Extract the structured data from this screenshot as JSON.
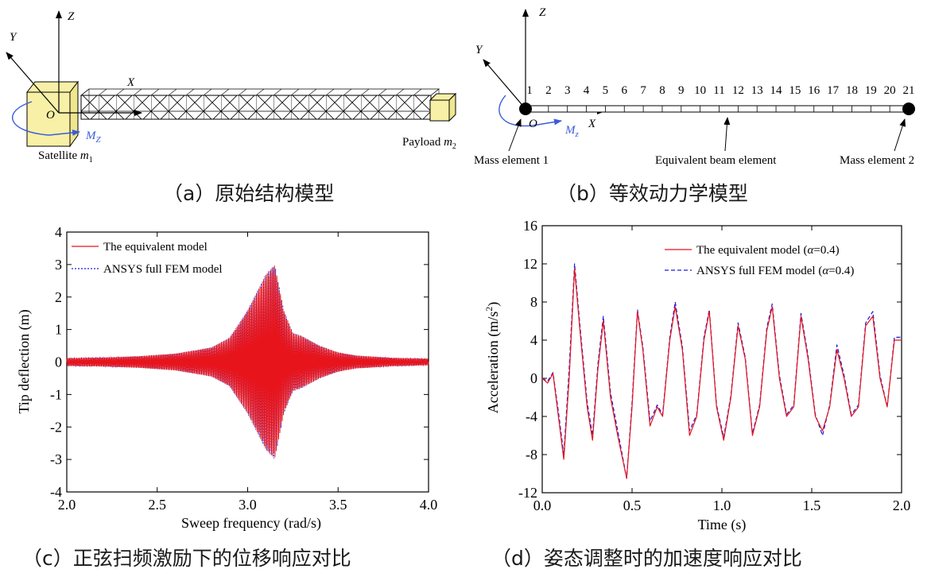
{
  "panel_a": {
    "caption": "（a）原始结构模型",
    "axis_z": "Z",
    "axis_y": "Y",
    "axis_x": "X",
    "origin": "O",
    "moment": "M",
    "moment_sub": "Z",
    "satellite": "Satellite ",
    "satellite_m": "m",
    "satellite_sub": "1",
    "payload": "Payload ",
    "payload_m": "m",
    "payload_sub": "2"
  },
  "panel_b": {
    "caption": "（b）等效动力学模型",
    "axis_z": "Z",
    "axis_y": "Y",
    "axis_x": "X",
    "origin": "O",
    "moment": "M",
    "moment_sub": "z",
    "node_numbers": [
      "1",
      "2",
      "3",
      "4",
      "5",
      "6",
      "7",
      "8",
      "9",
      "10",
      "11",
      "12",
      "13",
      "14",
      "15",
      "16",
      "17",
      "18",
      "19",
      "20",
      "21"
    ],
    "mass_element_1": "Mass element 1",
    "beam_element": "Equivalent beam element",
    "mass_element_2": "Mass element 2"
  },
  "panel_c": {
    "caption": "（c）正弦扫频激励下的位移响应对比"
  },
  "panel_d": {
    "caption": "（d）姿态调整时的加速度响应对比"
  },
  "colors": {
    "equivalent": "#e8141b",
    "ansys": "#1a1adc",
    "moment_arrow": "#3b5bdb",
    "cube": "#f7f0a6"
  },
  "chart_data": [
    {
      "type": "line",
      "xlabel": "Sweep frequency (rad/s)",
      "ylabel": "Tip deflection (m)",
      "xlim": [
        2.0,
        4.0
      ],
      "ylim": [
        -4,
        4
      ],
      "xticks": [
        "2.0",
        "2.5",
        "3.0",
        "3.5",
        "4.0"
      ],
      "yticks": [
        "-4",
        "-3",
        "-2",
        "-1",
        "0",
        "1",
        "2",
        "3",
        "4"
      ],
      "legend_position": "top-left",
      "series": [
        {
          "name": "The equivalent model",
          "style": "solid"
        },
        {
          "name": "ANSYS full FEM model",
          "style": "dotted"
        }
      ],
      "envelope": {
        "x": [
          2.0,
          2.2,
          2.4,
          2.6,
          2.8,
          2.9,
          3.0,
          3.1,
          3.15,
          3.2,
          3.25,
          3.3,
          3.4,
          3.5,
          3.6,
          3.8,
          4.0
        ],
        "amplitude": [
          0.12,
          0.14,
          0.18,
          0.26,
          0.45,
          0.75,
          1.6,
          2.7,
          3.0,
          1.6,
          0.9,
          0.8,
          0.5,
          0.3,
          0.2,
          0.13,
          0.1
        ]
      }
    },
    {
      "type": "line",
      "xlabel": "Time (s)",
      "ylabel": "Acceleration (m/s",
      "ylabel_sup": "2",
      "ylabel_end": ")",
      "xlim": [
        0.0,
        2.0
      ],
      "ylim": [
        -12,
        16
      ],
      "xticks": [
        "0.0",
        "0.5",
        "1.0",
        "1.5",
        "2.0"
      ],
      "yticks": [
        "-12",
        "-8",
        "-4",
        "0",
        "4",
        "8",
        "12",
        "16"
      ],
      "legend_position": "top-right",
      "series": [
        {
          "name": "The equivalent model (",
          "alpha": "α",
          "suffix": "=0.4)",
          "style": "solid",
          "x": [
            0.0,
            0.03,
            0.06,
            0.09,
            0.12,
            0.15,
            0.18,
            0.21,
            0.25,
            0.28,
            0.31,
            0.34,
            0.38,
            0.42,
            0.47,
            0.5,
            0.53,
            0.56,
            0.6,
            0.64,
            0.67,
            0.71,
            0.74,
            0.78,
            0.82,
            0.86,
            0.9,
            0.93,
            0.97,
            1.01,
            1.05,
            1.09,
            1.13,
            1.17,
            1.21,
            1.25,
            1.28,
            1.32,
            1.36,
            1.4,
            1.44,
            1.48,
            1.52,
            1.56,
            1.6,
            1.64,
            1.68,
            1.72,
            1.76,
            1.8,
            1.84,
            1.88,
            1.92,
            1.96,
            2.0
          ],
          "y": [
            0,
            -0.5,
            0.5,
            -4,
            -8.5,
            0,
            11.5,
            5,
            -3,
            -6.5,
            1,
            6,
            -2,
            -6,
            -10.5,
            -3,
            7,
            3,
            -5,
            -3,
            -4,
            4,
            7.5,
            3,
            -6,
            -4,
            4,
            7,
            -3,
            -6.5,
            -2,
            5.5,
            2,
            -6,
            -3,
            5,
            7.5,
            0,
            -4,
            -3,
            6.5,
            2,
            -4,
            -5.5,
            -3,
            3,
            0,
            -4,
            -3,
            5.5,
            6.5,
            0,
            -3,
            4,
            4
          ]
        },
        {
          "name": "ANSYS full FEM model (",
          "alpha": "α",
          "suffix": "=0.4)",
          "style": "dashed",
          "x": [
            0.0,
            0.03,
            0.06,
            0.09,
            0.12,
            0.15,
            0.18,
            0.21,
            0.25,
            0.28,
            0.31,
            0.34,
            0.38,
            0.42,
            0.47,
            0.5,
            0.53,
            0.56,
            0.6,
            0.64,
            0.67,
            0.71,
            0.74,
            0.78,
            0.82,
            0.86,
            0.9,
            0.93,
            0.97,
            1.01,
            1.05,
            1.09,
            1.13,
            1.17,
            1.21,
            1.25,
            1.28,
            1.32,
            1.36,
            1.4,
            1.44,
            1.48,
            1.52,
            1.56,
            1.6,
            1.64,
            1.68,
            1.72,
            1.76,
            1.8,
            1.84,
            1.88,
            1.92,
            1.96,
            2.0
          ],
          "y": [
            0,
            -0.3,
            0.6,
            -3.5,
            -8,
            1,
            12,
            5.5,
            -2.5,
            -6,
            1.5,
            6.5,
            -1.5,
            -5.5,
            -10.5,
            -2.5,
            7.2,
            3.3,
            -4.5,
            -2.8,
            -3.8,
            4.3,
            8,
            3.3,
            -5.5,
            -3.8,
            4.3,
            7.2,
            -2.8,
            -6.2,
            -1.8,
            5.8,
            2.2,
            -5.8,
            -2.8,
            5.3,
            7.8,
            0.3,
            -3.8,
            -2.8,
            6.8,
            2.3,
            -3.8,
            -6,
            -2.8,
            3.5,
            0.3,
            -3.8,
            -2.8,
            5.8,
            7,
            0.3,
            -3,
            4.3,
            4.3
          ]
        }
      ]
    }
  ]
}
